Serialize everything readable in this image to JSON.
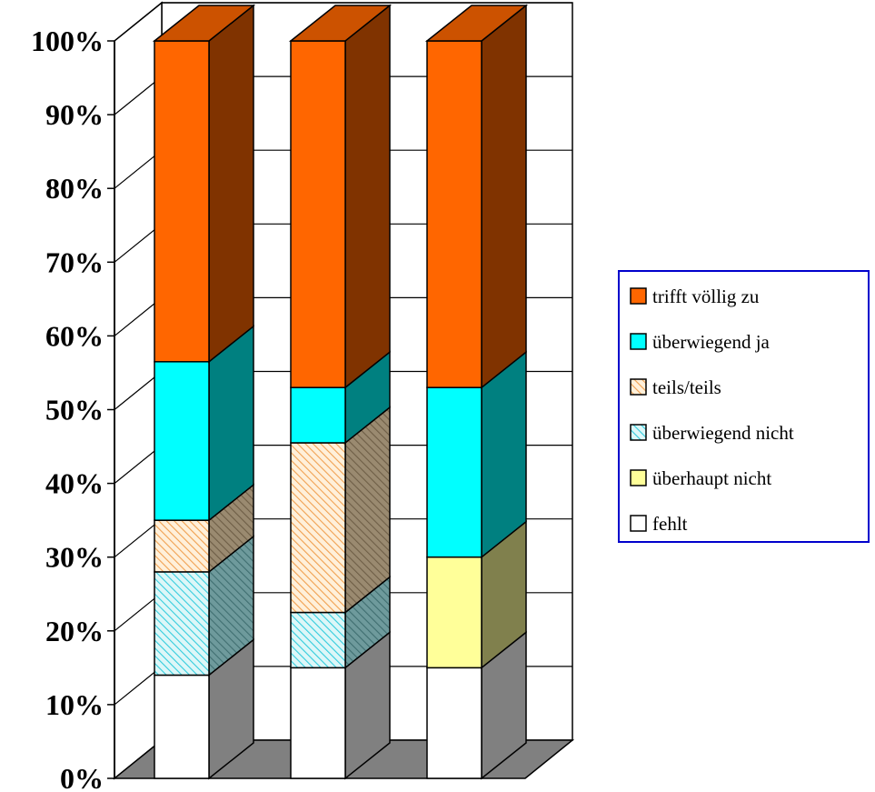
{
  "chart_data": {
    "type": "bar",
    "stacked": true,
    "percent": true,
    "three_d": true,
    "categories": [
      "",
      "",
      ""
    ],
    "ylim": [
      0,
      100
    ],
    "y_ticks": [
      "0%",
      "10%",
      "20%",
      "30%",
      "40%",
      "50%",
      "60%",
      "70%",
      "80%",
      "90%",
      "100%"
    ],
    "grid": true,
    "legend_position": "right",
    "series": [
      {
        "name": "fehlt",
        "values": [
          14,
          15,
          15
        ],
        "color": "#FFFFFF",
        "side_color": "#808080",
        "pattern": "none"
      },
      {
        "name": "überhaupt nicht",
        "values": [
          0,
          0,
          15
        ],
        "color": "#FFFF99",
        "side_color": "#80804D",
        "pattern": "none"
      },
      {
        "name": "überwiegend nicht",
        "values": [
          14,
          7.5,
          0
        ],
        "color": "#BDEFF2",
        "side_color": "#5F8A8C",
        "pattern": "hatch-cyan"
      },
      {
        "name": "teils/teils",
        "values": [
          7,
          23,
          0
        ],
        "color": "#FBD9A8",
        "side_color": "#8C7A5E",
        "pattern": "hatch-orange"
      },
      {
        "name": "überwiegend ja",
        "values": [
          21.5,
          7.5,
          23
        ],
        "color": "#00FFFF",
        "side_color": "#008080",
        "pattern": "none"
      },
      {
        "name": "trifft völlig zu",
        "values": [
          43.5,
          47,
          47
        ],
        "color": "#FF6600",
        "side_color": "#803300",
        "pattern": "none"
      }
    ],
    "legend_border_color": "#0000CC"
  }
}
